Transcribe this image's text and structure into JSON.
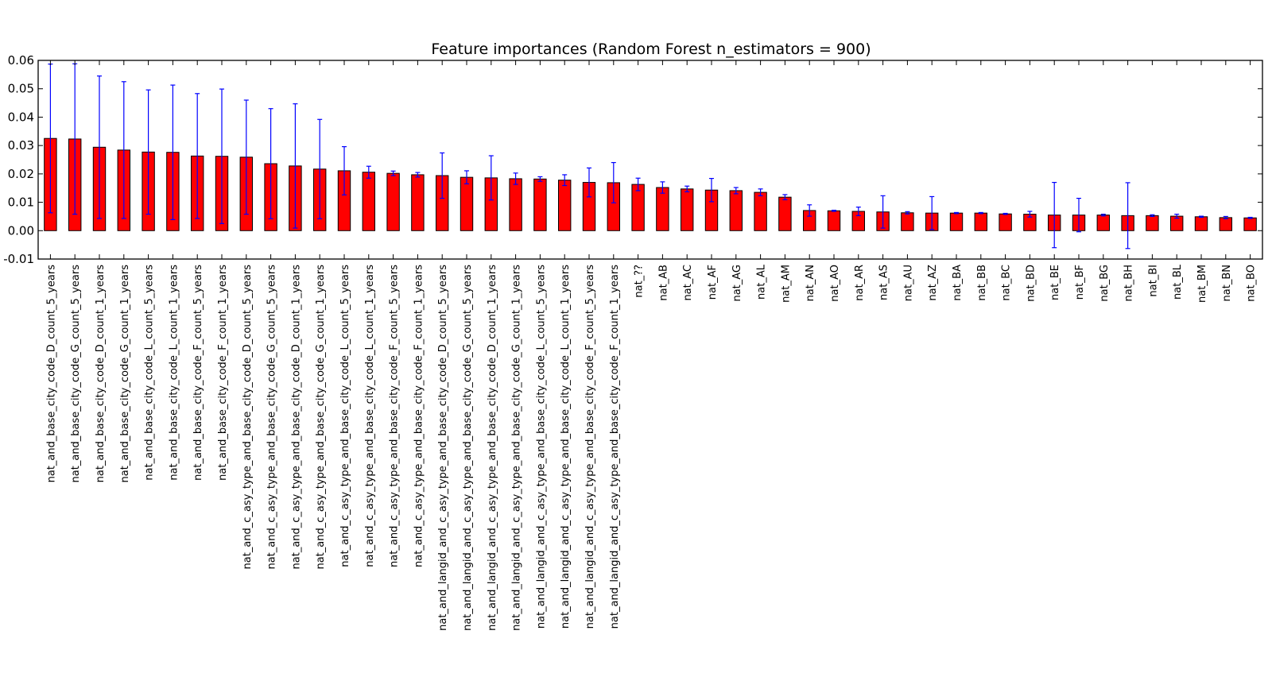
{
  "chart_data": {
    "type": "bar",
    "title": "Feature importances (Random Forest n_estimators = 900)",
    "xlabel": "",
    "ylabel": "",
    "ylim": [
      -0.01,
      0.06
    ],
    "yticks": [
      "-0.01",
      "0.00",
      "0.01",
      "0.02",
      "0.03",
      "0.04",
      "0.05",
      "0.06"
    ],
    "grid": false,
    "legend": "none",
    "bar_color": "#ff0000",
    "error_color": "#0000ff",
    "categories": [
      "nat_and_base_city_code_D_count_5_years",
      "nat_and_base_city_code_G_count_5_years",
      "nat_and_base_city_code_D_count_1_years",
      "nat_and_base_city_code_G_count_1_years",
      "nat_and_base_city_code_L_count_5_years",
      "nat_and_base_city_code_L_count_1_years",
      "nat_and_base_city_code_F_count_5_years",
      "nat_and_base_city_code_F_count_1_years",
      "nat_and_c_asy_type_and_base_city_code_D_count_5_years",
      "nat_and_c_asy_type_and_base_city_code_G_count_5_years",
      "nat_and_c_asy_type_and_base_city_code_D_count_1_years",
      "nat_and_c_asy_type_and_base_city_code_G_count_1_years",
      "nat_and_c_asy_type_and_base_city_code_L_count_5_years",
      "nat_and_c_asy_type_and_base_city_code_L_count_1_years",
      "nat_and_c_asy_type_and_base_city_code_F_count_5_years",
      "nat_and_c_asy_type_and_base_city_code_F_count_1_years",
      "nat_and_langid_and_c_asy_type_and_base_city_code_D_count_5_years",
      "nat_and_langid_and_c_asy_type_and_base_city_code_G_count_5_years",
      "nat_and_langid_and_c_asy_type_and_base_city_code_D_count_1_years",
      "nat_and_langid_and_c_asy_type_and_base_city_code_G_count_1_years",
      "nat_and_langid_and_c_asy_type_and_base_city_code_L_count_5_years",
      "nat_and_langid_and_c_asy_type_and_base_city_code_L_count_1_years",
      "nat_and_langid_and_c_asy_type_and_base_city_code_F_count_5_years",
      "nat_and_langid_and_c_asy_type_and_base_city_code_F_count_1_years",
      "nat_??",
      "nat_AB",
      "nat_AC",
      "nat_AF",
      "nat_AG",
      "nat_AL",
      "nat_AM",
      "nat_AN",
      "nat_AO",
      "nat_AR",
      "nat_AS",
      "nat_AU",
      "nat_AZ",
      "nat_BA",
      "nat_BB",
      "nat_BC",
      "nat_BD",
      "nat_BE",
      "nat_BF",
      "nat_BG",
      "nat_BH",
      "nat_BI",
      "nat_BL",
      "nat_BM",
      "nat_BN",
      "nat_BO"
    ],
    "values": [
      0.0325,
      0.0323,
      0.0294,
      0.0284,
      0.0277,
      0.0276,
      0.0263,
      0.0262,
      0.0259,
      0.0236,
      0.0228,
      0.0217,
      0.0211,
      0.0206,
      0.0202,
      0.0197,
      0.0194,
      0.0188,
      0.0186,
      0.0183,
      0.0182,
      0.0178,
      0.017,
      0.0169,
      0.0163,
      0.0152,
      0.0147,
      0.0143,
      0.0141,
      0.0135,
      0.0118,
      0.0071,
      0.007,
      0.0068,
      0.0066,
      0.0063,
      0.0062,
      0.0062,
      0.0062,
      0.0059,
      0.0058,
      0.0055,
      0.0055,
      0.0055,
      0.0053,
      0.0053,
      0.0051,
      0.0049,
      0.0046,
      0.0045
    ],
    "errors": [
      0.0262,
      0.0265,
      0.0251,
      0.0241,
      0.0219,
      0.0237,
      0.022,
      0.0237,
      0.0201,
      0.0194,
      0.0219,
      0.0175,
      0.0085,
      0.0021,
      0.0008,
      0.0008,
      0.008,
      0.0023,
      0.0078,
      0.002,
      0.0008,
      0.0019,
      0.0051,
      0.0071,
      0.0022,
      0.002,
      0.001,
      0.0041,
      0.0011,
      0.0012,
      0.0009,
      0.002,
      0.0002,
      0.0015,
      0.0057,
      0.0004,
      0.0058,
      0.0002,
      0.0002,
      0.0002,
      0.001,
      0.0115,
      0.0059,
      0.0003,
      0.0116,
      0.0003,
      0.0007,
      0.0002,
      0.0004,
      0.0002
    ]
  }
}
